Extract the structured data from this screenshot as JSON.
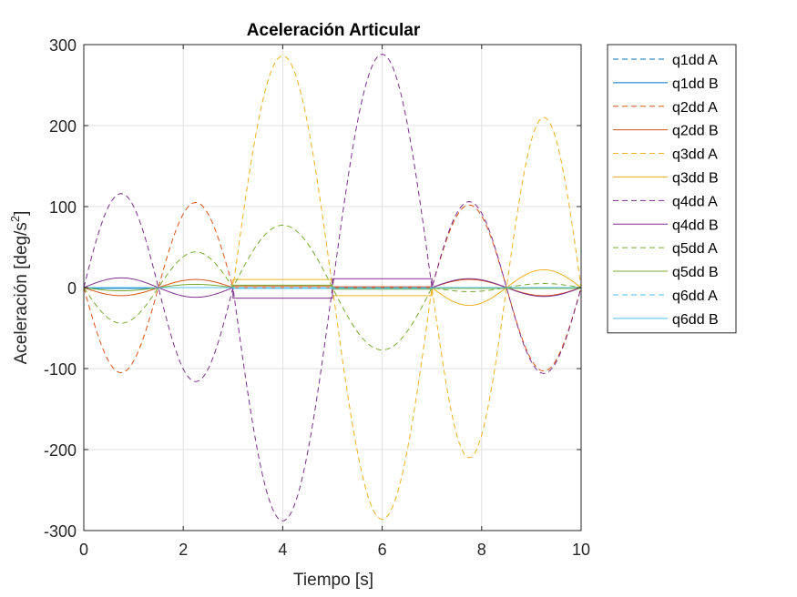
{
  "chart_data": {
    "type": "line",
    "title": "Aceleración Articular",
    "xlabel": "Tiempo [s]",
    "ylabel": "Aceleración [deg/s",
    "ylabel_sup": "2",
    "ylabel_close": "]",
    "xlim": [
      0,
      10
    ],
    "ylim": [
      -300,
      300
    ],
    "xticks": [
      0,
      2,
      4,
      6,
      8,
      10
    ],
    "xtick_labels": [
      "0",
      "2",
      "4",
      "6",
      "8",
      "10"
    ],
    "yticks": [
      -300,
      -200,
      -100,
      0,
      100,
      200,
      300
    ],
    "ytick_labels": [
      "-300",
      "-200",
      "-100",
      "0",
      "100",
      "200",
      "300"
    ],
    "grid": true,
    "legend_position": "outside-top-right",
    "segment_breaks": [
      0,
      1.5,
      3,
      5,
      7,
      8.5,
      10
    ],
    "series": [
      {
        "name": "q1dd A",
        "color": "#0072BD",
        "dash": true,
        "amps": [
          0,
          0,
          0,
          0,
          0,
          0
        ],
        "offsets": [
          0,
          0,
          0,
          0,
          0,
          0
        ]
      },
      {
        "name": "q1dd B",
        "color": "#0072BD",
        "dash": false,
        "amps": [
          0,
          0,
          0,
          0,
          0,
          0
        ],
        "offsets": [
          -1,
          0,
          0,
          0,
          0,
          0
        ]
      },
      {
        "name": "q2dd A",
        "color": "#D95319",
        "dash": true,
        "amps": [
          -105,
          105,
          0,
          0,
          102,
          -103
        ],
        "offsets": [
          0,
          0,
          0,
          0,
          0,
          0
        ]
      },
      {
        "name": "q2dd B",
        "color": "#D95319",
        "dash": false,
        "amps": [
          -10,
          10,
          0,
          0,
          10,
          -10
        ],
        "offsets": [
          0,
          0,
          2,
          1,
          0,
          0
        ]
      },
      {
        "name": "q3dd A",
        "color": "#EDB120",
        "dash": true,
        "amps": [
          0,
          0,
          286,
          -286,
          -210,
          210
        ],
        "offsets": [
          0,
          0,
          0,
          0,
          0,
          0
        ]
      },
      {
        "name": "q3dd B",
        "color": "#EDB120",
        "dash": false,
        "amps": [
          0,
          0,
          0,
          0,
          -22,
          22
        ],
        "offsets": [
          0,
          0,
          10,
          -10,
          0,
          0
        ]
      },
      {
        "name": "q4dd A",
        "color": "#7E2F8E",
        "dash": true,
        "amps": [
          116,
          -116,
          -288,
          288,
          106,
          -106
        ],
        "offsets": [
          0,
          0,
          0,
          0,
          0,
          0
        ]
      },
      {
        "name": "q4dd B",
        "color": "#7E2F8E",
        "dash": false,
        "amps": [
          12,
          -12,
          0,
          0,
          11,
          -11
        ],
        "offsets": [
          0,
          0,
          -13,
          11,
          0,
          0
        ]
      },
      {
        "name": "q5dd A",
        "color": "#77AC30",
        "dash": true,
        "amps": [
          -44,
          44,
          77,
          -77,
          -5,
          5
        ],
        "offsets": [
          0,
          0,
          0,
          0,
          0,
          0
        ]
      },
      {
        "name": "q5dd B",
        "color": "#77AC30",
        "dash": false,
        "amps": [
          -4,
          4,
          0,
          0,
          0,
          0
        ],
        "offsets": [
          0,
          0,
          3,
          -2,
          -1,
          -1
        ]
      },
      {
        "name": "q6dd A",
        "color": "#4DBEEE",
        "dash": true,
        "amps": [
          0,
          0,
          0,
          0,
          0,
          0
        ],
        "offsets": [
          0,
          0,
          0,
          0,
          0,
          0
        ]
      },
      {
        "name": "q6dd B",
        "color": "#4DBEEE",
        "dash": false,
        "amps": [
          0,
          0,
          0,
          0,
          0,
          0
        ],
        "offsets": [
          0,
          0,
          -1,
          -1,
          0,
          0
        ]
      }
    ]
  }
}
